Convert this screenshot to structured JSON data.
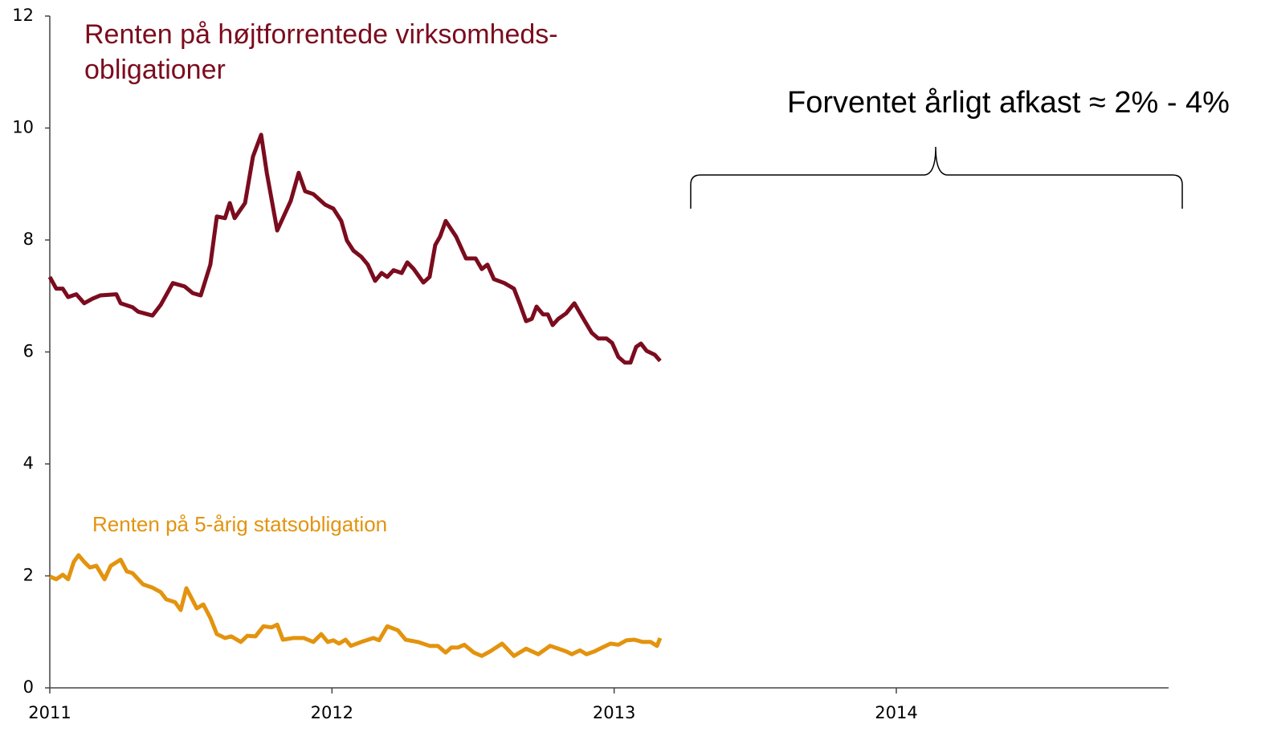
{
  "chart_data": {
    "type": "line",
    "annotation": "Forventet årligt afkast ≈ 2% - 4%",
    "xlim": [
      2011,
      2014.965
    ],
    "xticks": [
      2011,
      2012,
      2013,
      2014
    ],
    "ylim": [
      0,
      12
    ],
    "yticks": [
      0,
      2,
      4,
      6,
      8,
      10,
      12
    ],
    "series": [
      {
        "name": [
          "Renten på højtforrentede virksomheds-",
          "obligationer"
        ],
        "color": "#7b0c1e",
        "x": [
          2011,
          2011.023,
          2011.046,
          2011.065,
          2011.094,
          2011.122,
          2011.151,
          2011.179,
          2011.236,
          2011.251,
          2011.293,
          2011.313,
          2011.364,
          2011.393,
          2011.436,
          2011.478,
          2011.507,
          2011.535,
          2011.569,
          2011.592,
          2011.621,
          2011.638,
          2011.655,
          2011.692,
          2011.72,
          2011.749,
          2011.769,
          2011.806,
          2011.854,
          2011.882,
          2011.905,
          2011.934,
          2011.976,
          2012.005,
          2012.033,
          2012.053,
          2012.076,
          2012.104,
          2012.127,
          2012.153,
          2012.176,
          2012.196,
          2012.218,
          2012.247,
          2012.267,
          2012.29,
          2012.324,
          2012.346,
          2012.366,
          2012.383,
          2012.403,
          2012.44,
          2012.475,
          2012.509,
          2012.531,
          2012.551,
          2012.574,
          2012.611,
          2012.645,
          2012.665,
          2012.688,
          2012.708,
          2012.725,
          2012.748,
          2012.765,
          2012.782,
          2012.802,
          2012.83,
          2012.859,
          2012.896,
          2012.921,
          2012.944,
          2012.973,
          2012.993,
          2013.015,
          2013.038,
          2013.058,
          2013.078,
          2013.095,
          2013.115,
          2013.144,
          2013.163
        ],
        "values": [
          7.34,
          7.13,
          7.13,
          6.98,
          7.03,
          6.87,
          6.95,
          7.01,
          7.03,
          6.87,
          6.8,
          6.72,
          6.65,
          6.84,
          7.23,
          7.17,
          7.05,
          7.01,
          7.56,
          8.42,
          8.39,
          8.66,
          8.39,
          8.66,
          9.49,
          9.88,
          9.2,
          8.17,
          8.7,
          9.2,
          8.87,
          8.82,
          8.63,
          8.56,
          8.34,
          7.99,
          7.81,
          7.7,
          7.56,
          7.27,
          7.41,
          7.34,
          7.46,
          7.41,
          7.6,
          7.48,
          7.24,
          7.34,
          7.91,
          8.06,
          8.34,
          8.06,
          7.67,
          7.67,
          7.48,
          7.56,
          7.3,
          7.23,
          7.13,
          6.87,
          6.55,
          6.59,
          6.81,
          6.67,
          6.67,
          6.48,
          6.59,
          6.69,
          6.87,
          6.55,
          6.34,
          6.24,
          6.24,
          6.16,
          5.91,
          5.81,
          5.81,
          6.09,
          6.15,
          6.02,
          5.95,
          5.84
        ]
      },
      {
        "name": [
          "Renten på 5-årig statsobligation"
        ],
        "color": "#e3930e",
        "x": [
          2011,
          2011.023,
          2011.046,
          2011.065,
          2011.085,
          2011.102,
          2011.122,
          2011.142,
          2011.165,
          2011.194,
          2011.216,
          2011.251,
          2011.273,
          2011.293,
          2011.33,
          2011.364,
          2011.393,
          2011.413,
          2011.444,
          2011.464,
          2011.484,
          2011.521,
          2011.544,
          2011.569,
          2011.592,
          2011.621,
          2011.643,
          2011.677,
          2011.7,
          2011.729,
          2011.757,
          2011.786,
          2011.806,
          2011.826,
          2011.863,
          2011.9,
          2011.934,
          2011.962,
          2011.985,
          2012.005,
          2012.025,
          2012.048,
          2012.067,
          2012.104,
          2012.147,
          2012.167,
          2012.196,
          2012.233,
          2012.261,
          2012.304,
          2012.346,
          2012.375,
          2012.403,
          2012.423,
          2012.446,
          2012.469,
          2012.503,
          2012.531,
          2012.56,
          2012.603,
          2012.645,
          2012.688,
          2012.731,
          2012.773,
          2012.802,
          2012.83,
          2012.85,
          2012.879,
          2012.902,
          2012.93,
          2012.958,
          2012.987,
          2013.015,
          2013.044,
          2013.072,
          2013.101,
          2013.129,
          2013.152,
          2013.163
        ],
        "values": [
          1.99,
          1.94,
          2.02,
          1.94,
          2.25,
          2.37,
          2.25,
          2.15,
          2.18,
          1.94,
          2.18,
          2.29,
          2.08,
          2.05,
          1.85,
          1.79,
          1.71,
          1.58,
          1.53,
          1.39,
          1.78,
          1.42,
          1.49,
          1.25,
          0.96,
          0.89,
          0.92,
          0.82,
          0.93,
          0.92,
          1.1,
          1.08,
          1.13,
          0.86,
          0.89,
          0.89,
          0.82,
          0.96,
          0.82,
          0.85,
          0.79,
          0.86,
          0.75,
          0.82,
          0.89,
          0.85,
          1.1,
          1.03,
          0.86,
          0.82,
          0.75,
          0.75,
          0.63,
          0.72,
          0.72,
          0.77,
          0.63,
          0.57,
          0.65,
          0.79,
          0.57,
          0.7,
          0.6,
          0.75,
          0.7,
          0.65,
          0.6,
          0.67,
          0.6,
          0.65,
          0.72,
          0.79,
          0.77,
          0.85,
          0.86,
          0.82,
          0.82,
          0.75,
          0.89
        ]
      }
    ]
  }
}
